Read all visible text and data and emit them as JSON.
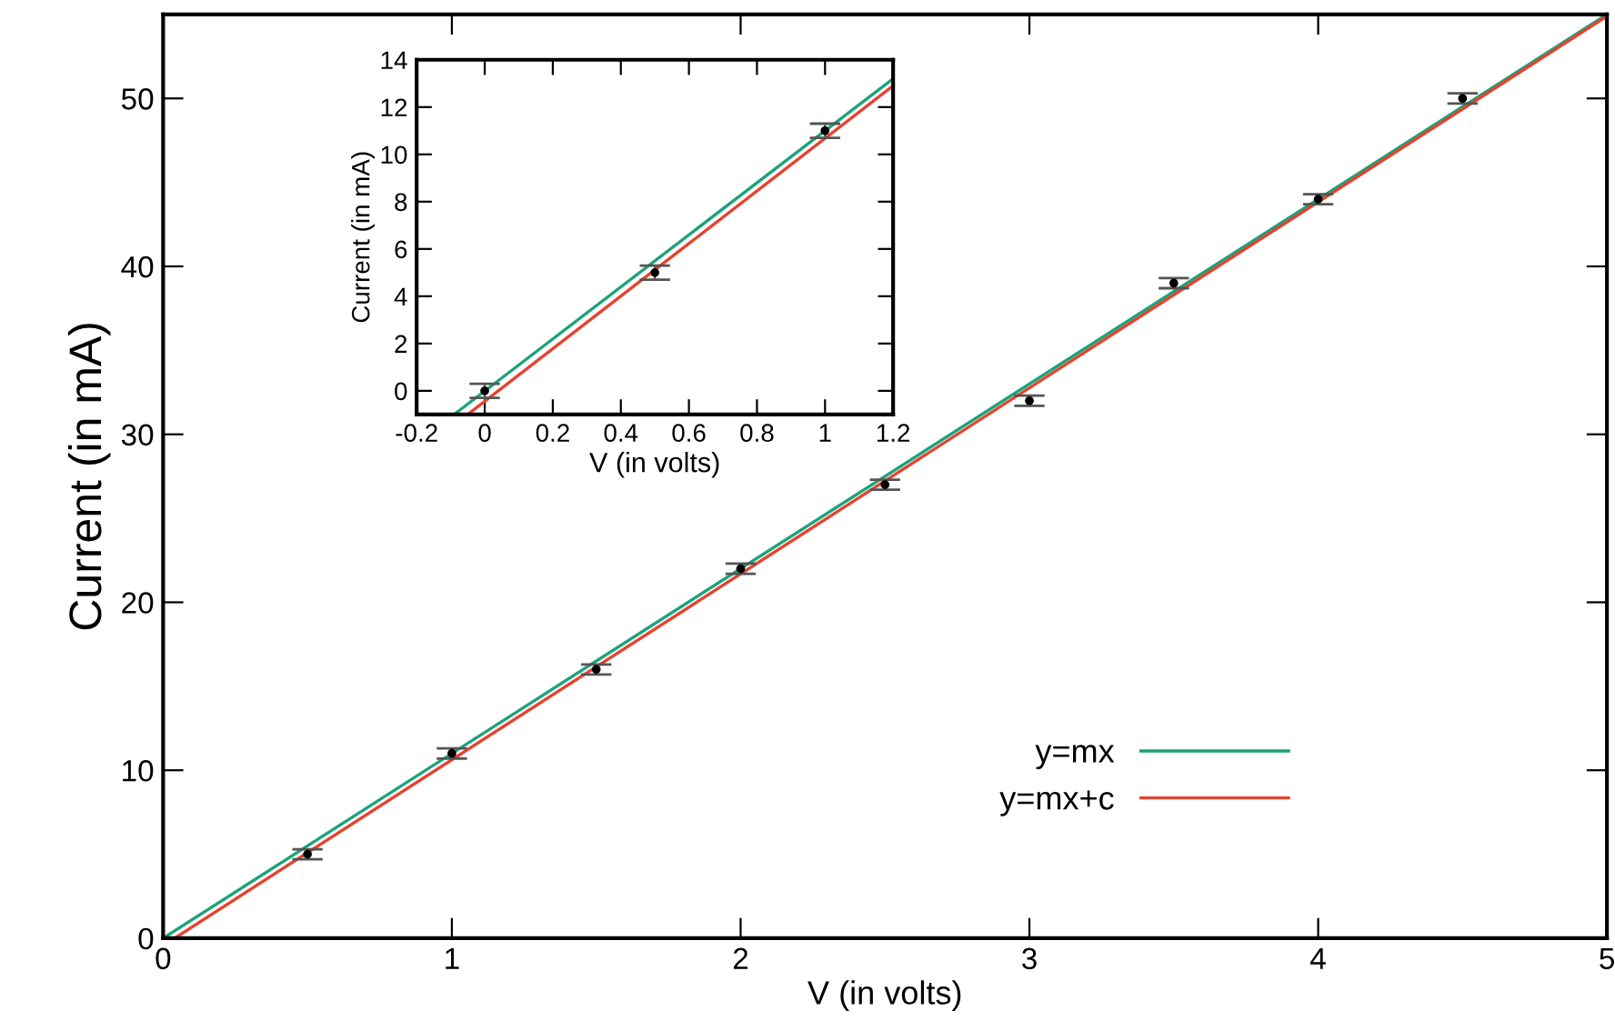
{
  "chart_data": [
    {
      "type": "scatter",
      "xlabel": "V (in volts)",
      "ylabel": "Current (in mA)",
      "xlim": [
        0,
        5
      ],
      "ylim": [
        0,
        55
      ],
      "xticks": [
        0,
        1,
        2,
        3,
        4,
        5
      ],
      "yticks": [
        0,
        10,
        20,
        30,
        40,
        50
      ],
      "grid": false,
      "legend": "bottom right",
      "series": [
        {
          "color": "#000000",
          "marker": "circle",
          "x": [
            0.5,
            1,
            1.5,
            2,
            2.5,
            3,
            3.5,
            4,
            4.5
          ],
          "values": [
            5,
            11,
            16,
            22,
            27,
            32,
            39,
            44,
            50
          ],
          "errors": [
            0.3,
            0.3,
            0.3,
            0.3,
            0.3,
            0.3,
            0.3,
            0.3,
            0.3
          ]
        },
        {
          "type": "line",
          "name": "y=mx",
          "color": "#1aa37a",
          "x": [
            0,
            5
          ],
          "values": [
            0,
            55
          ]
        },
        {
          "type": "line",
          "name": "y=mx+c",
          "color": "#e8412c",
          "x": [
            0.04,
            5
          ],
          "values": [
            0,
            54.9
          ]
        }
      ]
    },
    {
      "type": "scatter",
      "xlabel": "V (in volts)",
      "ylabel": "Current (in mA)",
      "xlim": [
        -0.2,
        1.2
      ],
      "ylim": [
        -1,
        14
      ],
      "xticks": [
        -0.2,
        0,
        0.2,
        0.4,
        0.6,
        0.8,
        1,
        1.2
      ],
      "yticks": [
        0,
        2,
        4,
        6,
        8,
        10,
        12,
        14
      ],
      "grid": false,
      "series": [
        {
          "color": "#000000",
          "marker": "circle",
          "x": [
            0,
            0.5,
            1
          ],
          "values": [
            0,
            5,
            11
          ],
          "errors": [
            0.3,
            0.3,
            0.3
          ]
        },
        {
          "type": "line",
          "color": "#1aa37a",
          "x": [
            -0.09,
            1.2
          ],
          "values": [
            -1,
            13.2
          ]
        },
        {
          "type": "line",
          "color": "#e8412c",
          "x": [
            -0.05,
            1.2
          ],
          "values": [
            -1,
            12.9
          ]
        }
      ]
    }
  ]
}
